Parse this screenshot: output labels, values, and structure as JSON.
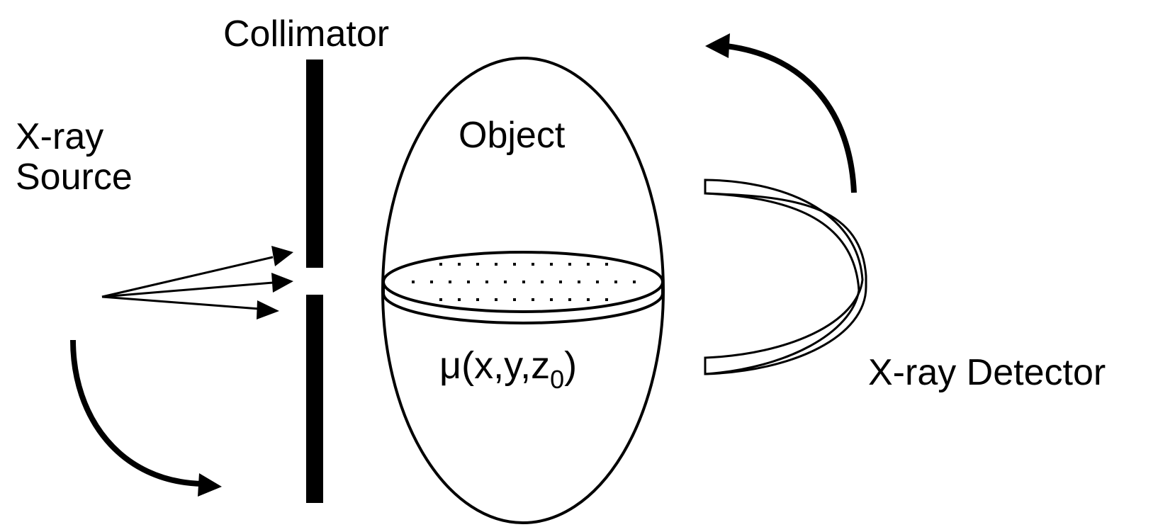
{
  "labels": {
    "collimator": "Collimator",
    "source_line1": "X-ray",
    "source_line2": "Source",
    "object": "Object",
    "detector": "X-ray Detector",
    "attenuation_prefix": "μ(x,y,z",
    "attenuation_subscript": "0",
    "attenuation_suffix": ")"
  },
  "colors": {
    "ink": "#000000",
    "background": "#ffffff"
  }
}
